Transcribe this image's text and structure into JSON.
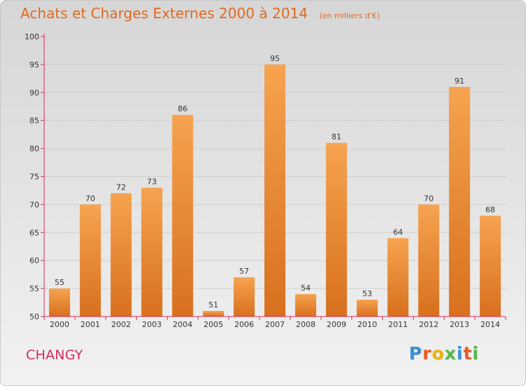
{
  "header": {
    "title": "Achats et Charges Externes 2000 à 2014",
    "subtitle": "(en milliers d'€)"
  },
  "footer": {
    "place": "CHANGY",
    "logo": [
      "P",
      "r",
      "o",
      "x",
      "i",
      "t",
      "i"
    ],
    "logo_colors": [
      "#3a8fd6",
      "#e85a20",
      "#f0b400",
      "#54b848",
      "#3a8fd6",
      "#e85a20",
      "#54b848"
    ]
  },
  "colors": {
    "bar_top": "#f6a34f",
    "bar_bottom": "#d8701e",
    "axis": "#d52d5a",
    "grid": "#cfcfcf"
  },
  "chart_data": {
    "type": "bar",
    "title": "Achats et Charges Externes 2000 à 2014",
    "subtitle": "(en milliers d'€)",
    "xlabel": "",
    "ylabel": "",
    "categories": [
      "2000",
      "2001",
      "2002",
      "2003",
      "2004",
      "2005",
      "2006",
      "2007",
      "2008",
      "2009",
      "2010",
      "2011",
      "2012",
      "2013",
      "2014"
    ],
    "values": [
      55,
      70,
      72,
      73,
      86,
      51,
      57,
      95,
      54,
      81,
      53,
      64,
      70,
      91,
      68
    ],
    "ylim": [
      50,
      100
    ],
    "yticks": [
      50,
      55,
      60,
      65,
      70,
      75,
      80,
      85,
      90,
      95,
      100
    ],
    "grid": true,
    "legend": "none"
  }
}
